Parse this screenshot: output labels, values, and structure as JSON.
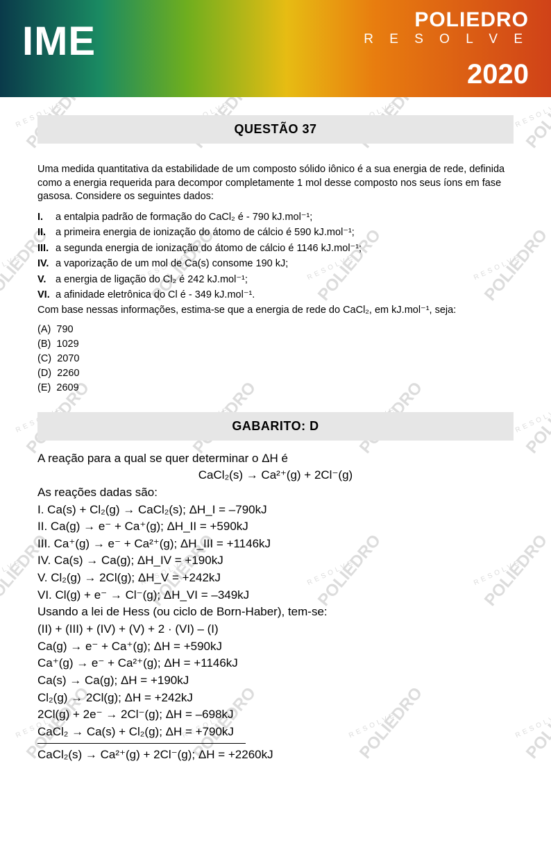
{
  "header": {
    "left": "IME",
    "brand": "POLIEDRO",
    "brand_sub": "R E S O L V E",
    "year": "2020",
    "gradient": [
      "#0a3a4a",
      "#1a8a62",
      "#6fae1e",
      "#e7bc13",
      "#e87d0f",
      "#d04218"
    ]
  },
  "watermark": {
    "text": "POLIEDRO",
    "sub": "RESOLVE",
    "color": "#dcdcdc"
  },
  "question": {
    "title": "QUESTÃO 37",
    "intro": "Uma medida quantitativa da estabilidade de um composto sólido iônico é a sua energia de rede, definida como a energia requerida para decompor completamente 1 mol desse composto nos seus íons em fase gasosa. Considere os seguintes dados:",
    "items": [
      "a entalpia padrão de formação do CaCl₂ é  - 790 kJ.mol⁻¹;",
      "a primeira energia de ionização do átomo de cálcio é 590 kJ.mol⁻¹;",
      "a segunda energia de ionização do átomo de cálcio é 1146 kJ.mol⁻¹;",
      "a vaporização de um mol de Ca(s) consome 190 kJ;",
      "a energia de ligação do Cl₂ é 242 kJ.mol⁻¹;",
      "a afinidade eletrônica do Cl é  - 349 kJ.mol⁻¹."
    ],
    "after": "Com base nessas informações, estima-se que a energia de rede do CaCl₂, em kJ.mol⁻¹, seja:",
    "alternatives": [
      {
        "k": "(A)",
        "v": "790"
      },
      {
        "k": "(B)",
        "v": "1029"
      },
      {
        "k": "(C)",
        "v": "2070"
      },
      {
        "k": "(D)",
        "v": "2260"
      },
      {
        "k": "(E)",
        "v": "2609"
      }
    ]
  },
  "answer": {
    "title": "GABARITO: D",
    "l1": "A reação para a qual se quer determinar o ΔH é",
    "l1eq": "CaCl₂(s) → Ca²⁺(g) + 2Cl⁻(g)",
    "l2": "As reações dadas são:",
    "given": [
      "I.    Ca(s) + Cl₂(g) → CaCl₂(s); ΔH_I = –790kJ",
      "II.   Ca(g) → e⁻ + Ca⁺(g); ΔH_II = +590kJ",
      "III.  Ca⁺(g) → e⁻ + Ca²⁺(g); ΔH_III = +1146kJ",
      "IV.  Ca(s) → Ca(g); ΔH_IV = +190kJ",
      "V.   Cl₂(g) → 2Cl(g); ΔH_V = +242kJ",
      "VI.  Cl(g) + e⁻ → Cl⁻(g); ΔH_VI = –349kJ"
    ],
    "hess": "Usando a lei de Hess (ou ciclo de Born-Haber), tem-se:",
    "comb": "(II) + (III) + (IV) + (V) + 2 · (VI) – (I)",
    "steps": [
      "Ca(g) → e⁻ + Ca⁺(g); ΔH = +590kJ",
      "Ca⁺(g) → e⁻ + Ca²⁺(g); ΔH = +1146kJ",
      "Ca(s) → Ca(g); ΔH = +190kJ",
      "Cl₂(g) → 2Cl(g); ΔH = +242kJ",
      "2Cl(g) + 2e⁻ → 2Cl⁻(g);  ΔH = –698kJ",
      "CaCl₂ → Ca(s) + Cl₂(g);   ΔH = +790kJ"
    ],
    "result": "CaCl₂(s) → Ca²⁺(g) + 2Cl⁻(g);  ΔH = +2260kJ"
  },
  "style": {
    "page_bg": "#ffffff",
    "bar_bg": "#e6e6e6",
    "title_fontsize": 18,
    "body_fontsize": 14.5,
    "solution_fontsize": 17
  }
}
